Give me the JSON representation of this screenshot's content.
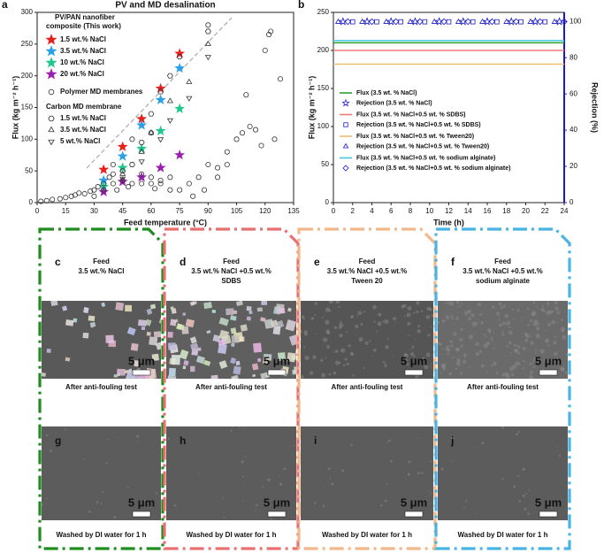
{
  "chart_data": [
    {
      "type": "scatter",
      "letter": "a",
      "title": "PV and MD desalination",
      "x_label": "Feed temperature (°C)",
      "y_label": "Flux (kg m⁻² h⁻¹)",
      "xlim": [
        0,
        135
      ],
      "xticks": [
        0,
        15,
        30,
        45,
        60,
        75,
        90,
        105,
        120,
        135
      ],
      "ylim": [
        0,
        300
      ],
      "yticks": [
        0,
        50,
        100,
        150,
        200,
        250,
        300
      ],
      "annotations": [
        "PV/PAN nanofiber",
        "composite (This work)",
        "Carbon MD membrane"
      ],
      "series": [
        {
          "name": "1.5 wt.% NaCl",
          "marker": "star",
          "color": "#e8201c",
          "x": [
            35,
            45,
            55,
            65,
            75
          ],
          "values": [
            52,
            88,
            132,
            180,
            235
          ]
        },
        {
          "name": "3.5 wt.% NaCl",
          "marker": "star",
          "color": "#2aa0e8",
          "x": [
            35,
            45,
            55,
            65,
            75
          ],
          "values": [
            35,
            73,
            122,
            162,
            212
          ]
        },
        {
          "name": "10 wt.% NaCl",
          "marker": "star",
          "color": "#20c890",
          "x": [
            35,
            45,
            55,
            65,
            75
          ],
          "values": [
            25,
            55,
            85,
            113,
            148
          ]
        },
        {
          "name": "20 wt.% NaCl",
          "marker": "star",
          "color": "#9a20b0",
          "x": [
            35,
            45,
            55,
            65,
            75
          ],
          "values": [
            17,
            33,
            40,
            55,
            75
          ]
        },
        {
          "name": "Polymer MD membranes",
          "marker": "circle",
          "color": "#333333",
          "x": [
            2,
            5,
            8,
            12,
            15,
            18,
            20,
            22,
            25,
            28,
            30,
            30,
            32,
            35,
            35,
            38,
            40,
            40,
            40,
            42,
            45,
            45,
            48,
            50,
            50,
            55,
            55,
            60,
            60,
            60,
            62,
            65,
            65,
            70,
            70,
            75,
            80,
            82,
            85,
            88,
            90,
            90,
            95,
            95,
            100,
            100,
            105,
            108,
            110,
            112,
            115,
            118,
            120,
            122,
            123,
            125,
            128
          ],
          "values": [
            2,
            3,
            5,
            6,
            8,
            10,
            12,
            15,
            14,
            18,
            20,
            10,
            25,
            30,
            20,
            40,
            45,
            30,
            60,
            20,
            50,
            35,
            25,
            30,
            100,
            45,
            30,
            30,
            40,
            110,
            22,
            35,
            30,
            40,
            20,
            20,
            30,
            10,
            40,
            20,
            60,
            280,
            55,
            40,
            60,
            80,
            100,
            110,
            170,
            120,
            115,
            90,
            240,
            265,
            270,
            100,
            195
          ]
        },
        {
          "name": "1.5 wt.% NaCl",
          "marker": "hexagon",
          "color": "#333333",
          "x": [
            50,
            55,
            60,
            65,
            70,
            75,
            90
          ],
          "values": [
            60,
            95,
            140,
            175,
            200,
            230,
            270
          ]
        },
        {
          "name": "3.5 wt.% NaCl",
          "marker": "triangle",
          "color": "#333333",
          "x": [
            45,
            55,
            60,
            70,
            80,
            90
          ],
          "values": [
            45,
            80,
            110,
            160,
            190,
            250
          ]
        },
        {
          "name": "5 wt.% NaCl",
          "marker": "triangle-down",
          "color": "#333333",
          "x": [
            45,
            55,
            65,
            70,
            80,
            90
          ],
          "values": [
            38,
            65,
            100,
            130,
            165,
            230
          ]
        }
      ]
    },
    {
      "type": "line",
      "letter": "b",
      "x_label": "Time (h)",
      "y_label": "Flux (kg m⁻² h⁻¹)",
      "y2_label": "Rejection (%)",
      "xlim": [
        0,
        24
      ],
      "xticks": [
        0,
        2,
        4,
        6,
        8,
        10,
        12,
        14,
        16,
        18,
        20,
        22,
        24
      ],
      "ylim": [
        0,
        250
      ],
      "yticks": [
        0,
        50,
        100,
        150,
        200,
        250
      ],
      "y2lim": [
        0,
        105
      ],
      "y2ticks": [
        0,
        20,
        40,
        60,
        80,
        100
      ],
      "y2_color": "#1a1ac8",
      "series": [
        {
          "name": "Flux (3.5 wt. % NaCl)",
          "marker": "line",
          "color": "#2ca02c",
          "x": [
            0,
            24
          ],
          "values": [
            210,
            210
          ]
        },
        {
          "name": "Rejection (3.5 wt. % NaCl)",
          "marker": "star",
          "axis": "y2",
          "color": "#1a1ac8",
          "x": [
            1,
            3.5,
            6,
            8.5,
            11,
            13.5,
            16,
            18.5,
            21,
            23.5
          ],
          "values": [
            99.9,
            99.9,
            99.9,
            99.9,
            99.9,
            99.9,
            99.9,
            99.9,
            99.9,
            99.9
          ]
        },
        {
          "name": "Flux (3.5 wt. % NaCl+0.5 wt. % SDBS)",
          "marker": "line",
          "color": "#f07a7a",
          "x": [
            0,
            24
          ],
          "values": [
            200,
            200
          ]
        },
        {
          "name": "Rejection (3.5 wt. % NaCl+0.5 wt. % SDBS)",
          "marker": "square",
          "axis": "y2",
          "color": "#1a1ac8",
          "x": [
            2,
            4.5,
            7,
            9.5,
            12,
            14.5,
            17,
            19.5,
            22
          ],
          "values": [
            99.8,
            99.8,
            99.8,
            99.8,
            99.8,
            99.8,
            99.8,
            99.8,
            99.8
          ]
        },
        {
          "name": "Flux (3.5 wt. % NaCl+0.5 wt. % Tween20)",
          "marker": "line",
          "color": "#e8c070",
          "x": [
            0,
            24
          ],
          "values": [
            182,
            182
          ]
        },
        {
          "name": "Rejection (3.5 wt. % NaCl+0.5 wt. % Tween20)",
          "marker": "triangle",
          "axis": "y2",
          "color": "#1a1ac8",
          "x": [
            0.5,
            3,
            5.5,
            8,
            10.5,
            13,
            15.5,
            18,
            20.5,
            23
          ],
          "values": [
            99.7,
            99.7,
            99.7,
            99.7,
            99.7,
            99.7,
            99.7,
            99.7,
            99.7,
            99.7
          ]
        },
        {
          "name": "Flux (3.5 wt. % NaCl+0.5 wt. % sodium alginate)",
          "marker": "line",
          "color": "#40c8e0",
          "x": [
            0,
            24
          ],
          "values": [
            213,
            213
          ]
        },
        {
          "name": "Rejection (3.5 wt. % NaCl+0.5 wt. % sodium alginate)",
          "marker": "diamond",
          "axis": "y2",
          "color": "#1a1ac8",
          "x": [
            1.5,
            4,
            6.5,
            9,
            11.5,
            14,
            16.5,
            19,
            21.5,
            24
          ],
          "values": [
            99.9,
            99.9,
            99.9,
            99.9,
            99.9,
            99.9,
            99.9,
            99.9,
            99.9,
            99.9
          ]
        }
      ]
    }
  ],
  "panels": [
    {
      "color": "#1e8c1e",
      "top_letter": "c",
      "feed": [
        "Feed",
        "3.5 wt.% NaCl"
      ],
      "scale_top": "5 μm",
      "middle": "After anti-fouling test",
      "bottom_letter": "g",
      "scale_bottom": "5 μm",
      "bottom_text": "Washed by DI water for 1 h"
    },
    {
      "color": "#e87070",
      "top_letter": "d",
      "feed": [
        "Feed",
        "3.5 wt.% NaCl +0.5 wt.%",
        "SDBS"
      ],
      "scale_top": "5 μm",
      "middle": "After anti-fouling test",
      "bottom_letter": "h",
      "scale_bottom": "5 μm",
      "bottom_text": "Washed by DI water for 1 h"
    },
    {
      "color": "#f2b88a",
      "top_letter": "e",
      "feed": [
        "Feed",
        "3.5 wt.% NaCl +0.5 wt.%",
        "Tween 20"
      ],
      "scale_top": "5 μm",
      "middle": "After anti-fouling test",
      "bottom_letter": "i",
      "scale_bottom": "5 μm",
      "bottom_text": "Washed by DI water for 1 h"
    },
    {
      "color": "#48b4e4",
      "top_letter": "f",
      "feed": [
        "Feed",
        "3.5 wt.% NaCl +0.5 wt.%",
        "sodium alginate"
      ],
      "scale_top": "5 μm",
      "middle": "After anti-fouling test",
      "bottom_letter": "j",
      "scale_bottom": "5 μm",
      "bottom_text": "Washed by DI water for 1 h"
    }
  ]
}
